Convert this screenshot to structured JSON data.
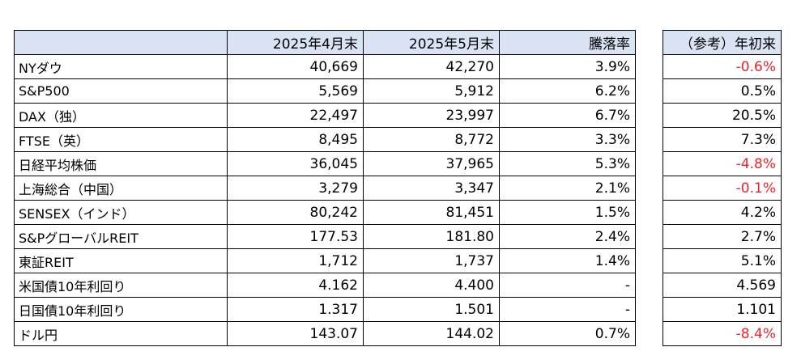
{
  "header": {
    "col_apr": "2025年4月末",
    "col_may": "2025年5月末",
    "col_change": "騰落率",
    "col_ytd": "（参考）年初来"
  },
  "rows": [
    {
      "name": "NYダウ",
      "apr": "40,669",
      "may": "42,270",
      "change": "3.9%",
      "ytd": "-0.6%",
      "ytd_negative": true
    },
    {
      "name": "S&P500",
      "apr": "5,569",
      "may": "5,912",
      "change": "6.2%",
      "ytd": "0.5%",
      "ytd_negative": false
    },
    {
      "name": "DAX（独）",
      "apr": "22,497",
      "may": "23,997",
      "change": "6.7%",
      "ytd": "20.5%",
      "ytd_negative": false
    },
    {
      "name": "FTSE（英）",
      "apr": "8,495",
      "may": "8,772",
      "change": "3.3%",
      "ytd": "7.3%",
      "ytd_negative": false
    },
    {
      "name": "日経平均株価",
      "apr": "36,045",
      "may": "37,965",
      "change": "5.3%",
      "ytd": "-4.8%",
      "ytd_negative": true
    },
    {
      "name": "上海総合（中国）",
      "apr": "3,279",
      "may": "3,347",
      "change": "2.1%",
      "ytd": "-0.1%",
      "ytd_negative": true
    },
    {
      "name": "SENSEX（インド）",
      "apr": "80,242",
      "may": "81,451",
      "change": "1.5%",
      "ytd": "4.2%",
      "ytd_negative": false
    },
    {
      "name": "S&PグローバルREIT",
      "apr": "177.53",
      "may": "181.80",
      "change": "2.4%",
      "ytd": "2.7%",
      "ytd_negative": false
    },
    {
      "name": "東証REIT",
      "apr": "1,712",
      "may": "1,737",
      "change": "1.4%",
      "ytd": "5.1%",
      "ytd_negative": false
    },
    {
      "name": "米国債10年利回り",
      "apr": "4.162",
      "may": "4.400",
      "change": "-",
      "ytd": "4.569",
      "ytd_negative": false
    },
    {
      "name": "日国債10年利回り",
      "apr": "1.317",
      "may": "1.501",
      "change": "-",
      "ytd": "1.101",
      "ytd_negative": false
    },
    {
      "name": "ドル円",
      "apr": "143.07",
      "may": "144.02",
      "change": "0.7%",
      "ytd": "-8.4%",
      "ytd_negative": true
    }
  ],
  "colors": {
    "header_bg": "#dae3f3",
    "negative": "#e8242a"
  }
}
